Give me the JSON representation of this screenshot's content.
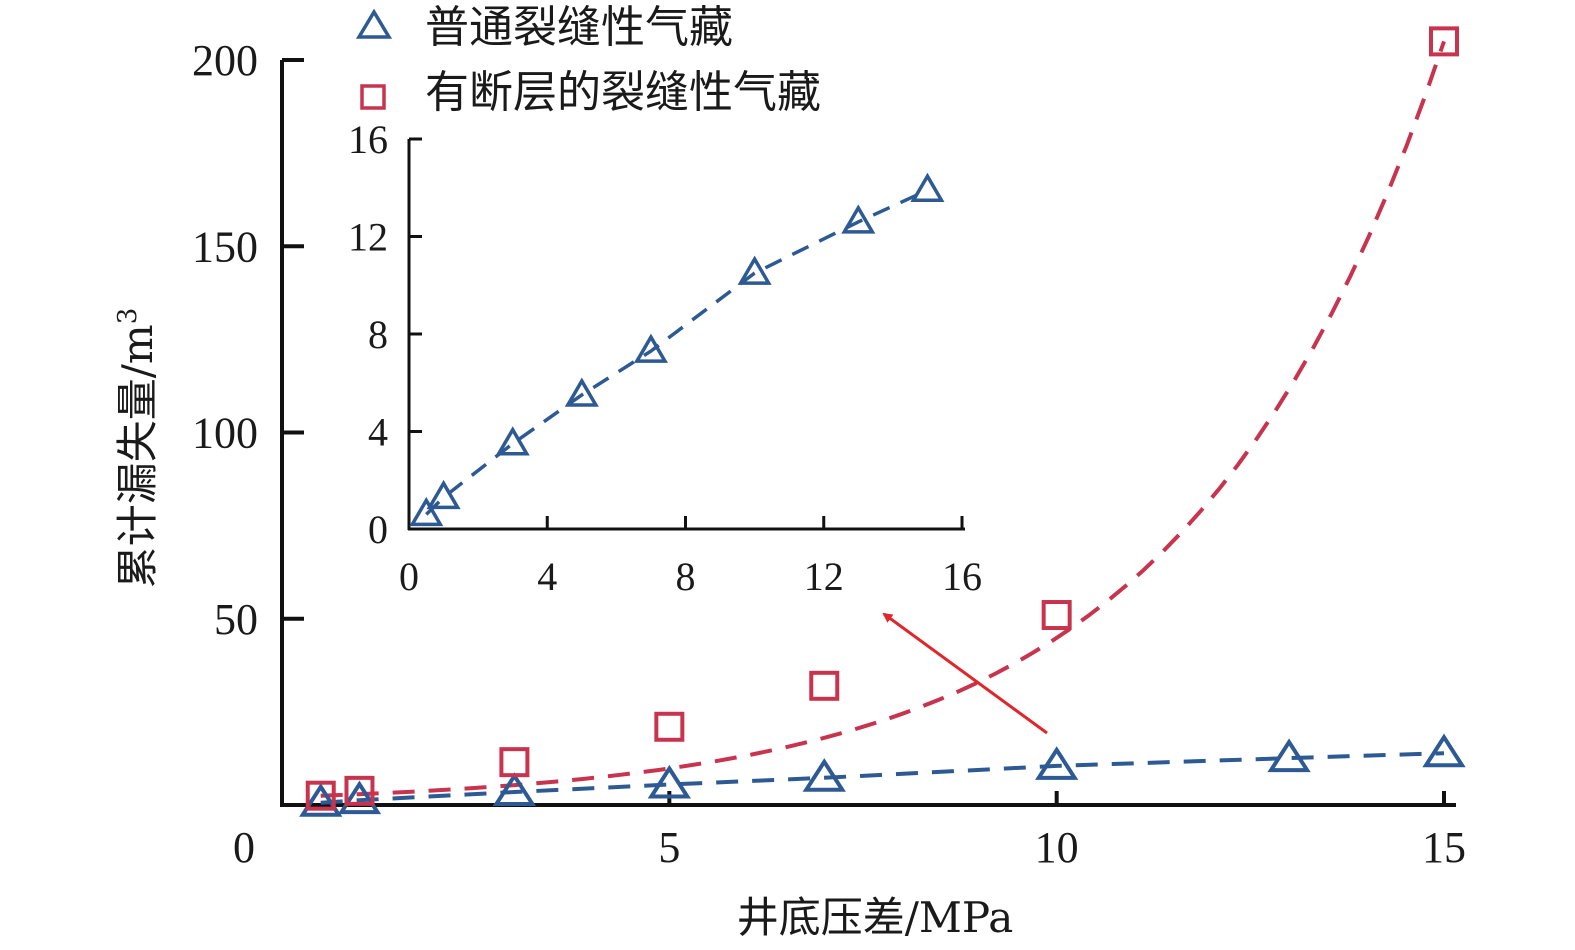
{
  "colors": {
    "series_1": "#2e5a94",
    "series_2": "#c8344e",
    "arrow": "#e0262b",
    "axis": "#111111"
  },
  "chart_data": [
    {
      "type": "scatter",
      "xlabel": "井底压差/MPa",
      "ylabel": "累计漏失量/m",
      "ylabel_superscript": "3",
      "xlim": [
        0,
        15
      ],
      "ylim": [
        0,
        200
      ],
      "x_ticks": [
        0,
        5,
        10,
        15
      ],
      "y_ticks": [
        50,
        100,
        150,
        200
      ],
      "legend_position": "top-center",
      "grid": false,
      "series": [
        {
          "name": "普通裂缝性气藏",
          "marker": "triangle",
          "color": "#2e5a94",
          "trend": "dashed",
          "points": [
            [
              0.5,
              0.6
            ],
            [
              1,
              1.3
            ],
            [
              3,
              3.5
            ],
            [
              5,
              5.5
            ],
            [
              7,
              7.3
            ],
            [
              10,
              10.5
            ],
            [
              13,
              12.6
            ],
            [
              15,
              13.9
            ]
          ]
        },
        {
          "name": "有断层的裂缝性气藏",
          "marker": "square",
          "color": "#c8344e",
          "trend": "dashed",
          "points": [
            [
              0.5,
              2.5
            ],
            [
              1,
              3.8
            ],
            [
              3,
              11.5
            ],
            [
              5,
              21
            ],
            [
              7,
              32
            ],
            [
              10,
              51
            ],
            [
              15,
              205
            ]
          ]
        }
      ]
    },
    {
      "type": "scatter",
      "inset": true,
      "xlim": [
        0,
        16
      ],
      "ylim": [
        0,
        16
      ],
      "x_ticks": [
        0,
        4,
        8,
        12,
        16
      ],
      "y_ticks": [
        0,
        4,
        8,
        12,
        16
      ],
      "series": [
        {
          "name": "普通裂缝性气藏",
          "marker": "triangle",
          "color": "#2e5a94",
          "trend": "dashed",
          "points": [
            [
              0.5,
              0.6
            ],
            [
              1,
              1.3
            ],
            [
              3,
              3.5
            ],
            [
              5,
              5.5
            ],
            [
              7,
              7.3
            ],
            [
              10,
              10.5
            ],
            [
              13,
              12.6
            ],
            [
              15,
              13.9
            ]
          ]
        }
      ]
    }
  ]
}
